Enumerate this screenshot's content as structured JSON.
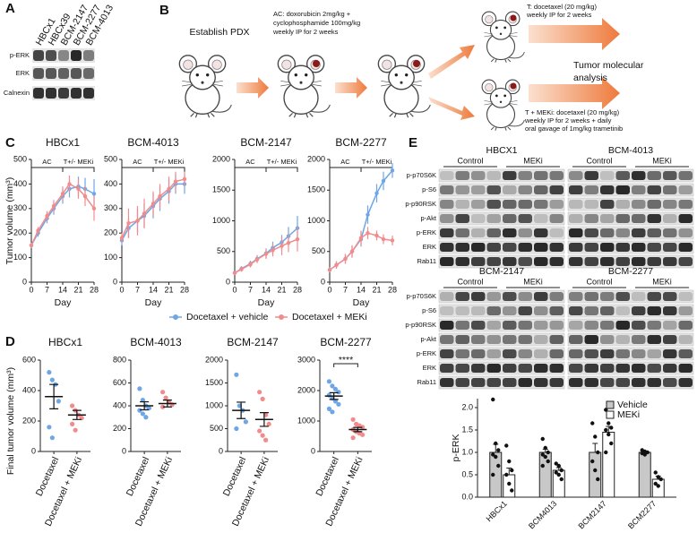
{
  "panel_labels": [
    "A",
    "B",
    "C",
    "D",
    "E"
  ],
  "blot_a": {
    "columns": [
      "HBCx1",
      "HBCx39",
      "BCM-2147",
      "BCM-2277",
      "BCM-4013"
    ],
    "rows": [
      "p-ERK",
      "ERK",
      "Calnexin"
    ]
  },
  "schema": {
    "establish": "Establish PDX",
    "ac_lines": [
      "AC: doxorubicin 2mg/kg +",
      "cyclophosphamide 100mg/kg",
      "weekly IP for 2 weeks"
    ],
    "t_lines": [
      "T: docetaxel (20 mg/kg)",
      "weekly IP for 2 weeks"
    ],
    "tm_lines": [
      "T + MEKi: docetaxel (20 mg/kg)",
      "weekly IP for 2 weeks + daily",
      "oral gavage of 1mg/kg trametinib"
    ],
    "analysis_lines": [
      "Tumor molecular",
      "analysis"
    ]
  },
  "blot_e": {
    "groups": [
      {
        "title": "HBCX1",
        "conditions": [
          "Control",
          "MEKi"
        ]
      },
      {
        "title": "BCM-4013",
        "conditions": [
          "Control",
          "MEKi"
        ]
      },
      {
        "title": "BCM-2147",
        "conditions": [
          "Control",
          "MEKi"
        ]
      },
      {
        "title": "BCM-2277",
        "conditions": [
          "Control",
          "MEKi"
        ]
      }
    ],
    "rows": [
      "p-p70S6K",
      "p-S6",
      "p-p90RSK",
      "p-Akt",
      "p-ERK",
      "ERK",
      "Rab11"
    ]
  },
  "chart_data": [
    {
      "type": "line",
      "title": "HBCx1",
      "xlabel": "Day",
      "ylabel": "Tumor volume (mm³)",
      "annotations": [
        "AC",
        "T+/- MEKi"
      ],
      "x": [
        0,
        3,
        7,
        10,
        14,
        17,
        21,
        24,
        28
      ],
      "xlim": [
        0,
        28
      ],
      "xticks": [
        0,
        7,
        14,
        21,
        28
      ],
      "ylim": [
        0,
        500
      ],
      "yticks": [
        0,
        100,
        200,
        300,
        400,
        500
      ],
      "series": [
        {
          "name": "Docetaxel + vehicle",
          "color": "#6ea6e6",
          "values": [
            150,
            200,
            260,
            300,
            350,
            380,
            390,
            380,
            360
          ],
          "errors": [
            10,
            15,
            20,
            25,
            30,
            35,
            40,
            45,
            60
          ]
        },
        {
          "name": "Docetaxel + MEKi",
          "color": "#f28b8b",
          "values": [
            150,
            210,
            270,
            310,
            360,
            400,
            380,
            350,
            300
          ],
          "errors": [
            10,
            15,
            20,
            25,
            30,
            35,
            40,
            40,
            50
          ]
        }
      ]
    },
    {
      "type": "line",
      "title": "BCM-4013",
      "xlabel": "Day",
      "annotations": [
        "AC",
        "T+/- MEKi"
      ],
      "x": [
        0,
        3,
        7,
        10,
        14,
        17,
        21,
        24,
        28
      ],
      "xlim": [
        0,
        28
      ],
      "xticks": [
        0,
        7,
        14,
        21,
        28
      ],
      "ylim": [
        0,
        500
      ],
      "yticks": [
        0,
        100,
        200,
        300,
        400,
        500
      ],
      "series": [
        {
          "color": "#6ea6e6",
          "values": [
            170,
            220,
            250,
            270,
            310,
            340,
            370,
            400,
            400
          ],
          "errors": [
            20,
            40,
            50,
            50,
            50,
            50,
            50,
            40,
            40
          ]
        },
        {
          "color": "#f28b8b",
          "values": [
            180,
            240,
            250,
            280,
            320,
            350,
            380,
            410,
            420
          ],
          "errors": [
            20,
            60,
            60,
            60,
            50,
            50,
            50,
            40,
            30
          ]
        }
      ]
    },
    {
      "type": "line",
      "title": "BCM-2147",
      "xlabel": "Day",
      "annotations": [
        "AC",
        "T+/- MEKi"
      ],
      "x": [
        0,
        3,
        7,
        10,
        14,
        17,
        21,
        24,
        28
      ],
      "xlim": [
        0,
        28
      ],
      "xticks": [
        0,
        7,
        14,
        21,
        28
      ],
      "ylim": [
        0,
        2000
      ],
      "yticks": [
        0,
        500,
        1000,
        1500,
        2000
      ],
      "series": [
        {
          "color": "#6ea6e6",
          "values": [
            150,
            220,
            300,
            380,
            470,
            560,
            650,
            750,
            880
          ],
          "errors": [
            30,
            40,
            50,
            60,
            80,
            100,
            120,
            150,
            200
          ]
        },
        {
          "color": "#f28b8b",
          "values": [
            150,
            210,
            290,
            370,
            460,
            520,
            590,
            640,
            700
          ],
          "errors": [
            30,
            40,
            50,
            60,
            80,
            100,
            150,
            150,
            200
          ]
        }
      ]
    },
    {
      "type": "line",
      "title": "BCM-2277",
      "xlabel": "Day",
      "annotations": [
        "AC",
        "T+/- MEKi"
      ],
      "x": [
        0,
        3,
        7,
        10,
        14,
        17,
        21,
        24,
        28
      ],
      "xlim": [
        0,
        28
      ],
      "xticks": [
        0,
        7,
        14,
        21,
        28
      ],
      "ylim": [
        0,
        2000
      ],
      "yticks": [
        0,
        500,
        1000,
        1500,
        2000
      ],
      "series": [
        {
          "color": "#6ea6e6",
          "values": [
            200,
            280,
            380,
            500,
            700,
            1100,
            1450,
            1650,
            1820
          ],
          "errors": [
            40,
            60,
            80,
            100,
            120,
            150,
            150,
            150,
            120
          ]
        },
        {
          "color": "#f28b8b",
          "values": [
            200,
            280,
            380,
            500,
            720,
            800,
            760,
            700,
            680
          ],
          "errors": [
            40,
            60,
            80,
            100,
            120,
            100,
            80,
            80,
            80
          ]
        }
      ]
    },
    {
      "type": "dot",
      "title": "HBCx1",
      "ylabel": "Final tumor volume (mm³)",
      "categories": [
        "Docetaxel",
        "Docetaxel + MEKi"
      ],
      "colors": [
        "#6ea6e6",
        "#f28b8b"
      ],
      "points": [
        [
          520,
          470,
          440,
          330,
          160,
          90
        ],
        [
          300,
          270,
          240,
          220,
          180,
          140
        ]
      ],
      "means": [
        360,
        240
      ],
      "sems": [
        80,
        30
      ],
      "ylim": [
        0,
        600
      ],
      "yticks": [
        0,
        200,
        400,
        600
      ]
    },
    {
      "type": "dot",
      "title": "BCM-4013",
      "categories": [
        "Docetaxel",
        "Docetaxel + MEKi"
      ],
      "colors": [
        "#6ea6e6",
        "#f28b8b"
      ],
      "points": [
        [
          550,
          450,
          400,
          380,
          360,
          330,
          300
        ],
        [
          520,
          470,
          430,
          410,
          390
        ]
      ],
      "means": [
        400,
        420
      ],
      "sems": [
        35,
        30
      ],
      "ylim": [
        0,
        800
      ],
      "yticks": [
        0,
        200,
        400,
        600,
        800
      ]
    },
    {
      "type": "dot",
      "title": "BCM-2147",
      "categories": [
        "Docetaxel",
        "Docetaxel + MEKi"
      ],
      "colors": [
        "#6ea6e6",
        "#f28b8b"
      ],
      "points": [
        [
          1680,
          1000,
          900,
          650,
          500
        ],
        [
          1300,
          1150,
          800,
          600,
          450,
          350,
          250
        ]
      ],
      "means": [
        900,
        700
      ],
      "sems": [
        180,
        150
      ],
      "ylim": [
        0,
        2000
      ],
      "yticks": [
        0,
        500,
        1000,
        1500,
        2000
      ]
    },
    {
      "type": "dot",
      "title": "BCM-2277",
      "annotation": "****",
      "categories": [
        "Docetaxel",
        "Docetaxel + MEKi"
      ],
      "colors": [
        "#6ea6e6",
        "#f28b8b"
      ],
      "points": [
        [
          2300,
          2150,
          2050,
          1950,
          1850,
          1750,
          1650,
          1550,
          1400,
          1300
        ],
        [
          1050,
          900,
          850,
          800,
          720,
          650,
          600,
          550,
          450
        ]
      ],
      "means": [
        1820,
        720
      ],
      "sems": [
        110,
        70
      ],
      "ylim": [
        0,
        3000
      ],
      "yticks": [
        0,
        1000,
        2000,
        3000
      ]
    },
    {
      "type": "bar",
      "ylabel": "p-ERK",
      "legend": "upper right",
      "categories": [
        "HBCx1",
        "BCM4013",
        "BCM2147",
        "BCM2277"
      ],
      "ylim": [
        0,
        2.2
      ],
      "yticks": [
        {
          "value": 0,
          "label": "0.0"
        },
        0.5,
        {
          "value": 1,
          "label": "1.0"
        },
        1.5,
        {
          "value": 2,
          "label": "2.0"
        }
      ],
      "series": [
        {
          "name": "Vehicle",
          "color": "#c8c8c8",
          "values": [
            1.0,
            1.0,
            1.0,
            1.0
          ],
          "errors": [
            0.18,
            0.07,
            0.2,
            0.03
          ],
          "points": [
            [
              2.18,
              1.2,
              1.05,
              0.95,
              0.9,
              0.7,
              0.5
            ],
            [
              1.3,
              1.1,
              1.0,
              0.95,
              0.9,
              0.8,
              0.7
            ],
            [
              1.65,
              1.35,
              1.0,
              0.8,
              0.6,
              0.4
            ],
            [
              1.05,
              1.02,
              1.0,
              0.98,
              0.95
            ]
          ]
        },
        {
          "name": "MEKi",
          "color": "#ffffff",
          "values": [
            0.5,
            0.6,
            1.45,
            0.4
          ],
          "errors": [
            0.15,
            0.06,
            0.13,
            0.07
          ],
          "points": [
            [
              1.15,
              0.8,
              0.6,
              0.5,
              0.3,
              0.15
            ],
            [
              0.75,
              0.7,
              0.6,
              0.55,
              0.5,
              0.4
            ],
            [
              1.95,
              1.65,
              1.55,
              1.5,
              1.4,
              1.2,
              1.0
            ],
            [
              0.55,
              0.45,
              0.4,
              0.3,
              0.25
            ]
          ]
        }
      ]
    }
  ]
}
